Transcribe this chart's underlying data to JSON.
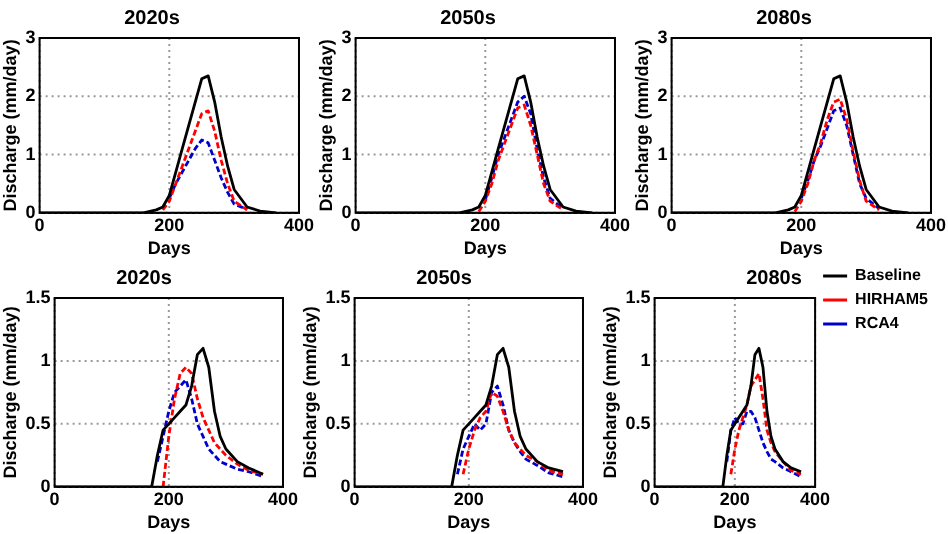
{
  "chart_data": [
    {
      "type": "line",
      "title": "2020s",
      "xlabel": "Days",
      "ylabel": "Discharge (mm/day)",
      "x": [
        0,
        160,
        180,
        190,
        200,
        210,
        220,
        230,
        240,
        250,
        260,
        270,
        280,
        290,
        300,
        320,
        340,
        365
      ],
      "xlim": [
        0,
        400
      ],
      "xticks": [
        0,
        200,
        400
      ],
      "ylim": [
        0,
        3
      ],
      "yticks": [
        0,
        1,
        2,
        3
      ],
      "grid": true,
      "legend": false,
      "marker": "none",
      "series": [
        {
          "color": "#000000",
          "line_style": "solid",
          "values": [
            0,
            0,
            0.05,
            0.1,
            0.3,
            0.7,
            1.1,
            1.5,
            1.9,
            2.3,
            2.35,
            1.9,
            1.3,
            0.8,
            0.4,
            0.1,
            0.03,
            0
          ]
        },
        {
          "color": "#ff0000",
          "line_style": "dashed",
          "values": [
            null,
            null,
            null,
            0.05,
            0.2,
            0.5,
            0.8,
            1.1,
            1.4,
            1.7,
            1.75,
            1.4,
            0.9,
            0.5,
            0.2,
            0.05,
            null,
            null
          ]
        },
        {
          "color": "#0000cc",
          "line_style": "dashed",
          "values": [
            null,
            null,
            null,
            null,
            0.25,
            0.5,
            0.7,
            0.9,
            1.1,
            1.25,
            1.2,
            0.9,
            0.6,
            0.35,
            0.15,
            0.06,
            null,
            null
          ]
        }
      ]
    },
    {
      "type": "line",
      "title": "2050s",
      "xlabel": "Days",
      "ylabel": "Discharge (mm/day)",
      "x": [
        0,
        160,
        180,
        190,
        200,
        210,
        220,
        230,
        240,
        250,
        260,
        270,
        280,
        290,
        300,
        320,
        340,
        365
      ],
      "xlim": [
        0,
        400
      ],
      "xticks": [
        0,
        200,
        400
      ],
      "ylim": [
        0,
        3
      ],
      "yticks": [
        0,
        1,
        2,
        3
      ],
      "grid": true,
      "legend": false,
      "marker": "none",
      "series": [
        {
          "color": "#000000",
          "line_style": "solid",
          "values": [
            0,
            0,
            0.05,
            0.1,
            0.3,
            0.7,
            1.1,
            1.5,
            1.9,
            2.3,
            2.35,
            1.9,
            1.3,
            0.8,
            0.4,
            0.1,
            0.03,
            0
          ]
        },
        {
          "color": "#ff0000",
          "line_style": "dashed",
          "values": [
            null,
            null,
            null,
            0.02,
            0.2,
            0.5,
            0.9,
            1.2,
            1.5,
            1.8,
            1.85,
            1.5,
            1,
            0.5,
            0.2,
            0.05,
            null,
            null
          ]
        },
        {
          "color": "#0000cc",
          "line_style": "dashed",
          "values": [
            null,
            null,
            null,
            null,
            0.22,
            0.6,
            1,
            1.3,
            1.6,
            1.9,
            2,
            1.7,
            1.1,
            0.6,
            0.25,
            0.07,
            null,
            null
          ]
        }
      ]
    },
    {
      "type": "line",
      "title": "2080s",
      "xlabel": "Days",
      "ylabel": "Discharge (mm/day)",
      "x": [
        0,
        160,
        180,
        190,
        200,
        210,
        220,
        230,
        240,
        250,
        260,
        270,
        280,
        290,
        300,
        320,
        340,
        365
      ],
      "xlim": [
        0,
        400
      ],
      "xticks": [
        0,
        200,
        400
      ],
      "ylim": [
        0,
        3
      ],
      "yticks": [
        0,
        1,
        2,
        3
      ],
      "grid": true,
      "legend": false,
      "marker": "none",
      "series": [
        {
          "color": "#000000",
          "line_style": "solid",
          "values": [
            0,
            0,
            0.05,
            0.1,
            0.3,
            0.7,
            1.1,
            1.5,
            1.9,
            2.3,
            2.35,
            1.9,
            1.3,
            0.8,
            0.4,
            0.1,
            0.03,
            0
          ]
        },
        {
          "color": "#ff0000",
          "line_style": "dashed",
          "values": [
            null,
            null,
            null,
            0.02,
            0.2,
            0.5,
            0.9,
            1.2,
            1.6,
            1.9,
            1.95,
            1.6,
            1.05,
            0.55,
            0.2,
            0.05,
            null,
            null
          ]
        },
        {
          "color": "#0000cc",
          "line_style": "dashed",
          "values": [
            null,
            null,
            null,
            null,
            0.25,
            0.55,
            0.9,
            1.15,
            1.45,
            1.75,
            1.8,
            1.5,
            1,
            0.5,
            0.25,
            0.07,
            null,
            null
          ]
        }
      ]
    },
    {
      "type": "line",
      "title": "2020s",
      "xlabel": "Days",
      "ylabel": "Discharge (mm/day)",
      "x": [
        0,
        160,
        170,
        180,
        190,
        200,
        210,
        220,
        230,
        240,
        250,
        260,
        270,
        280,
        290,
        300,
        320,
        340,
        365
      ],
      "xlim": [
        0,
        400
      ],
      "xticks": [
        0,
        200,
        400
      ],
      "ylim": [
        0,
        1.5
      ],
      "yticks": [
        0,
        0.5,
        1,
        1.5
      ],
      "grid": true,
      "legend": false,
      "marker": "none",
      "series": [
        {
          "color": "#000000",
          "line_style": "solid",
          "values": [
            0,
            0,
            0,
            0.25,
            0.45,
            0.5,
            0.55,
            0.6,
            0.65,
            0.8,
            1.05,
            1.1,
            0.95,
            0.6,
            0.4,
            0.3,
            0.2,
            0.15,
            0.1
          ]
        },
        {
          "color": "#ff0000",
          "line_style": "dashed",
          "values": [
            null,
            null,
            null,
            null,
            0,
            0.4,
            0.7,
            0.9,
            0.95,
            0.9,
            0.7,
            0.55,
            0.45,
            0.35,
            0.3,
            0.25,
            0.18,
            0.13,
            0.1
          ]
        },
        {
          "color": "#0000cc",
          "line_style": "dashed",
          "values": [
            null,
            null,
            null,
            0.2,
            0.4,
            0.6,
            0.75,
            0.8,
            0.85,
            0.7,
            0.5,
            0.4,
            0.3,
            0.25,
            0.2,
            0.18,
            0.14,
            0.12,
            0.08
          ]
        }
      ]
    },
    {
      "type": "line",
      "title": "2050s",
      "xlabel": "Days",
      "ylabel": "Discharge (mm/day)",
      "x": [
        0,
        160,
        170,
        180,
        190,
        200,
        210,
        220,
        230,
        240,
        250,
        260,
        270,
        280,
        290,
        300,
        320,
        340,
        365
      ],
      "xlim": [
        0,
        400
      ],
      "xticks": [
        0,
        200,
        400
      ],
      "ylim": [
        0,
        1.5
      ],
      "yticks": [
        0,
        0.5,
        1,
        1.5
      ],
      "grid": true,
      "legend": false,
      "marker": "none",
      "series": [
        {
          "color": "#000000",
          "line_style": "solid",
          "values": [
            0,
            0,
            0,
            0.25,
            0.45,
            0.5,
            0.55,
            0.6,
            0.65,
            0.8,
            1.05,
            1.1,
            0.95,
            0.6,
            0.4,
            0.3,
            0.2,
            0.15,
            0.12
          ]
        },
        {
          "color": "#ff0000",
          "line_style": "dashed",
          "values": [
            null,
            null,
            null,
            null,
            0.1,
            0.3,
            0.45,
            0.55,
            0.6,
            0.75,
            0.72,
            0.6,
            0.45,
            0.35,
            0.3,
            0.25,
            0.2,
            0.13,
            0.1
          ]
        },
        {
          "color": "#0000cc",
          "line_style": "dashed",
          "values": [
            null,
            null,
            null,
            0.1,
            0.3,
            0.4,
            0.5,
            0.45,
            0.5,
            0.75,
            0.8,
            0.65,
            0.45,
            0.35,
            0.28,
            0.22,
            0.17,
            0.11,
            0.08
          ]
        }
      ]
    },
    {
      "type": "line",
      "title": "2080s",
      "xlabel": "Days",
      "ylabel": "Discharge (mm/day)",
      "x": [
        0,
        160,
        170,
        180,
        190,
        200,
        210,
        220,
        230,
        240,
        250,
        260,
        270,
        280,
        290,
        300,
        320,
        340,
        365
      ],
      "xlim": [
        0,
        400
      ],
      "xticks": [
        0,
        200,
        400
      ],
      "ylim": [
        0,
        1.5
      ],
      "yticks": [
        0,
        0.5,
        1,
        1.5
      ],
      "grid": true,
      "legend": "right",
      "marker": "none",
      "series": [
        {
          "name": "Baseline",
          "color": "#000000",
          "line_style": "solid",
          "values": [
            0,
            0,
            0,
            0.25,
            0.45,
            0.5,
            0.55,
            0.6,
            0.65,
            0.8,
            1.05,
            1.1,
            0.95,
            0.6,
            0.4,
            0.3,
            0.2,
            0.15,
            0.12
          ]
        },
        {
          "name": "HIRHAM5",
          "color": "#ff0000",
          "line_style": "dashed",
          "values": [
            null,
            null,
            null,
            null,
            0.1,
            0.3,
            0.45,
            0.55,
            0.65,
            0.8,
            0.85,
            0.9,
            0.7,
            0.45,
            0.35,
            0.28,
            0.2,
            0.13,
            0.1
          ]
        },
        {
          "name": "RCA4",
          "color": "#0000cc",
          "line_style": "dashed",
          "values": [
            null,
            null,
            null,
            0.2,
            0.45,
            0.55,
            0.5,
            0.5,
            0.6,
            0.6,
            0.55,
            0.45,
            0.35,
            0.28,
            0.22,
            0.2,
            0.15,
            0.12,
            0.08
          ]
        }
      ]
    }
  ]
}
